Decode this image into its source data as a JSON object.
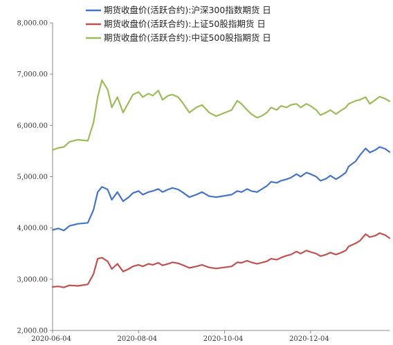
{
  "chart_data": {
    "type": "line",
    "title": "",
    "xlabel": "",
    "ylabel": "",
    "ylim": [
      2000,
      8000
    ],
    "yticks": [
      "2,000.00",
      "3,000.00",
      "4,000.00",
      "5,000.00",
      "6,000.00",
      "7,000.00",
      "8,000.00"
    ],
    "ytick_values": [
      2000,
      3000,
      4000,
      5000,
      6000,
      7000,
      8000
    ],
    "xlim": [
      "2020-06-04",
      "2021-01-29"
    ],
    "xticks": [
      "2020-06-04",
      "2020-08-04",
      "2020-10-04",
      "2020-12-04"
    ],
    "grid": false,
    "legend_position": "top-right",
    "series": [
      {
        "name": "期货收盘价(活跃合约):沪深300指数期货 日",
        "color": "#4472C4",
        "points": [
          [
            "2020-06-04",
            3960
          ],
          [
            "2020-06-08",
            3990
          ],
          [
            "2020-06-12",
            3950
          ],
          [
            "2020-06-16",
            4040
          ],
          [
            "2020-06-22",
            4080
          ],
          [
            "2020-06-29",
            4100
          ],
          [
            "2020-07-03",
            4350
          ],
          [
            "2020-07-06",
            4700
          ],
          [
            "2020-07-09",
            4800
          ],
          [
            "2020-07-13",
            4750
          ],
          [
            "2020-07-16",
            4550
          ],
          [
            "2020-07-20",
            4700
          ],
          [
            "2020-07-24",
            4520
          ],
          [
            "2020-07-28",
            4600
          ],
          [
            "2020-07-31",
            4680
          ],
          [
            "2020-08-04",
            4720
          ],
          [
            "2020-08-07",
            4650
          ],
          [
            "2020-08-11",
            4700
          ],
          [
            "2020-08-14",
            4720
          ],
          [
            "2020-08-18",
            4760
          ],
          [
            "2020-08-21",
            4700
          ],
          [
            "2020-08-25",
            4750
          ],
          [
            "2020-08-28",
            4780
          ],
          [
            "2020-09-01",
            4750
          ],
          [
            "2020-09-04",
            4700
          ],
          [
            "2020-09-09",
            4600
          ],
          [
            "2020-09-14",
            4650
          ],
          [
            "2020-09-18",
            4700
          ],
          [
            "2020-09-23",
            4620
          ],
          [
            "2020-09-28",
            4600
          ],
          [
            "2020-10-09",
            4650
          ],
          [
            "2020-10-13",
            4720
          ],
          [
            "2020-10-16",
            4700
          ],
          [
            "2020-10-20",
            4760
          ],
          [
            "2020-10-23",
            4720
          ],
          [
            "2020-10-27",
            4700
          ],
          [
            "2020-10-30",
            4750
          ],
          [
            "2020-11-03",
            4820
          ],
          [
            "2020-11-06",
            4900
          ],
          [
            "2020-11-10",
            4880
          ],
          [
            "2020-11-13",
            4920
          ],
          [
            "2020-11-17",
            4950
          ],
          [
            "2020-11-20",
            4980
          ],
          [
            "2020-11-24",
            5050
          ],
          [
            "2020-11-27",
            5000
          ],
          [
            "2020-12-01",
            5080
          ],
          [
            "2020-12-04",
            5050
          ],
          [
            "2020-12-08",
            5000
          ],
          [
            "2020-12-11",
            4920
          ],
          [
            "2020-12-15",
            4960
          ],
          [
            "2020-12-18",
            5020
          ],
          [
            "2020-12-22",
            4950
          ],
          [
            "2020-12-25",
            5000
          ],
          [
            "2020-12-29",
            5080
          ],
          [
            "2020-12-31",
            5200
          ],
          [
            "2021-01-05",
            5300
          ],
          [
            "2021-01-08",
            5420
          ],
          [
            "2021-01-12",
            5550
          ],
          [
            "2021-01-15",
            5470
          ],
          [
            "2021-01-19",
            5520
          ],
          [
            "2021-01-22",
            5580
          ],
          [
            "2021-01-26",
            5540
          ],
          [
            "2021-01-29",
            5480
          ]
        ]
      },
      {
        "name": "期货收盘价(活跃合约):上证50股指期货 日",
        "color": "#C0504D",
        "points": [
          [
            "2020-06-04",
            2850
          ],
          [
            "2020-06-08",
            2860
          ],
          [
            "2020-06-12",
            2840
          ],
          [
            "2020-06-16",
            2880
          ],
          [
            "2020-06-22",
            2870
          ],
          [
            "2020-06-29",
            2900
          ],
          [
            "2020-07-03",
            3100
          ],
          [
            "2020-07-06",
            3400
          ],
          [
            "2020-07-09",
            3420
          ],
          [
            "2020-07-13",
            3350
          ],
          [
            "2020-07-16",
            3200
          ],
          [
            "2020-07-20",
            3300
          ],
          [
            "2020-07-24",
            3150
          ],
          [
            "2020-07-28",
            3200
          ],
          [
            "2020-07-31",
            3250
          ],
          [
            "2020-08-04",
            3280
          ],
          [
            "2020-08-07",
            3250
          ],
          [
            "2020-08-11",
            3300
          ],
          [
            "2020-08-14",
            3280
          ],
          [
            "2020-08-18",
            3320
          ],
          [
            "2020-08-21",
            3270
          ],
          [
            "2020-08-25",
            3300
          ],
          [
            "2020-08-28",
            3330
          ],
          [
            "2020-09-01",
            3310
          ],
          [
            "2020-09-04",
            3280
          ],
          [
            "2020-09-09",
            3220
          ],
          [
            "2020-09-14",
            3250
          ],
          [
            "2020-09-18",
            3280
          ],
          [
            "2020-09-23",
            3230
          ],
          [
            "2020-09-28",
            3210
          ],
          [
            "2020-10-09",
            3250
          ],
          [
            "2020-10-13",
            3330
          ],
          [
            "2020-10-16",
            3320
          ],
          [
            "2020-10-20",
            3360
          ],
          [
            "2020-10-23",
            3330
          ],
          [
            "2020-10-27",
            3300
          ],
          [
            "2020-10-30",
            3320
          ],
          [
            "2020-11-03",
            3350
          ],
          [
            "2020-11-06",
            3400
          ],
          [
            "2020-11-10",
            3380
          ],
          [
            "2020-11-13",
            3420
          ],
          [
            "2020-11-17",
            3460
          ],
          [
            "2020-11-20",
            3480
          ],
          [
            "2020-11-24",
            3540
          ],
          [
            "2020-11-27",
            3500
          ],
          [
            "2020-12-01",
            3560
          ],
          [
            "2020-12-04",
            3530
          ],
          [
            "2020-12-08",
            3500
          ],
          [
            "2020-12-11",
            3450
          ],
          [
            "2020-12-15",
            3480
          ],
          [
            "2020-12-18",
            3520
          ],
          [
            "2020-12-22",
            3480
          ],
          [
            "2020-12-25",
            3510
          ],
          [
            "2020-12-29",
            3560
          ],
          [
            "2020-12-31",
            3640
          ],
          [
            "2021-01-05",
            3700
          ],
          [
            "2021-01-08",
            3750
          ],
          [
            "2021-01-12",
            3880
          ],
          [
            "2021-01-15",
            3820
          ],
          [
            "2021-01-19",
            3850
          ],
          [
            "2021-01-22",
            3900
          ],
          [
            "2021-01-26",
            3860
          ],
          [
            "2021-01-29",
            3800
          ]
        ]
      },
      {
        "name": "期货收盘价(活跃合约):中证500股指期货 日",
        "color": "#9BBB59",
        "points": [
          [
            "2020-06-04",
            5520
          ],
          [
            "2020-06-08",
            5560
          ],
          [
            "2020-06-12",
            5580
          ],
          [
            "2020-06-16",
            5680
          ],
          [
            "2020-06-22",
            5720
          ],
          [
            "2020-06-29",
            5700
          ],
          [
            "2020-07-03",
            6050
          ],
          [
            "2020-07-06",
            6550
          ],
          [
            "2020-07-09",
            6880
          ],
          [
            "2020-07-13",
            6700
          ],
          [
            "2020-07-16",
            6350
          ],
          [
            "2020-07-20",
            6550
          ],
          [
            "2020-07-24",
            6250
          ],
          [
            "2020-07-28",
            6450
          ],
          [
            "2020-07-31",
            6600
          ],
          [
            "2020-08-04",
            6650
          ],
          [
            "2020-08-07",
            6550
          ],
          [
            "2020-08-11",
            6620
          ],
          [
            "2020-08-14",
            6580
          ],
          [
            "2020-08-18",
            6680
          ],
          [
            "2020-08-21",
            6500
          ],
          [
            "2020-08-25",
            6580
          ],
          [
            "2020-08-28",
            6600
          ],
          [
            "2020-09-01",
            6550
          ],
          [
            "2020-09-04",
            6450
          ],
          [
            "2020-09-09",
            6250
          ],
          [
            "2020-09-14",
            6350
          ],
          [
            "2020-09-18",
            6400
          ],
          [
            "2020-09-23",
            6250
          ],
          [
            "2020-09-28",
            6180
          ],
          [
            "2020-10-09",
            6300
          ],
          [
            "2020-10-13",
            6480
          ],
          [
            "2020-10-16",
            6420
          ],
          [
            "2020-10-20",
            6300
          ],
          [
            "2020-10-23",
            6220
          ],
          [
            "2020-10-27",
            6150
          ],
          [
            "2020-10-30",
            6180
          ],
          [
            "2020-11-03",
            6250
          ],
          [
            "2020-11-06",
            6350
          ],
          [
            "2020-11-10",
            6300
          ],
          [
            "2020-11-13",
            6380
          ],
          [
            "2020-11-17",
            6350
          ],
          [
            "2020-11-20",
            6400
          ],
          [
            "2020-11-24",
            6420
          ],
          [
            "2020-11-27",
            6350
          ],
          [
            "2020-12-01",
            6420
          ],
          [
            "2020-12-04",
            6380
          ],
          [
            "2020-12-08",
            6300
          ],
          [
            "2020-12-11",
            6200
          ],
          [
            "2020-12-15",
            6250
          ],
          [
            "2020-12-18",
            6300
          ],
          [
            "2020-12-22",
            6220
          ],
          [
            "2020-12-25",
            6280
          ],
          [
            "2020-12-29",
            6350
          ],
          [
            "2020-12-31",
            6420
          ],
          [
            "2021-01-05",
            6480
          ],
          [
            "2021-01-08",
            6500
          ],
          [
            "2021-01-12",
            6550
          ],
          [
            "2021-01-15",
            6420
          ],
          [
            "2021-01-19",
            6500
          ],
          [
            "2021-01-22",
            6560
          ],
          [
            "2021-01-26",
            6520
          ],
          [
            "2021-01-29",
            6470
          ]
        ]
      }
    ]
  }
}
